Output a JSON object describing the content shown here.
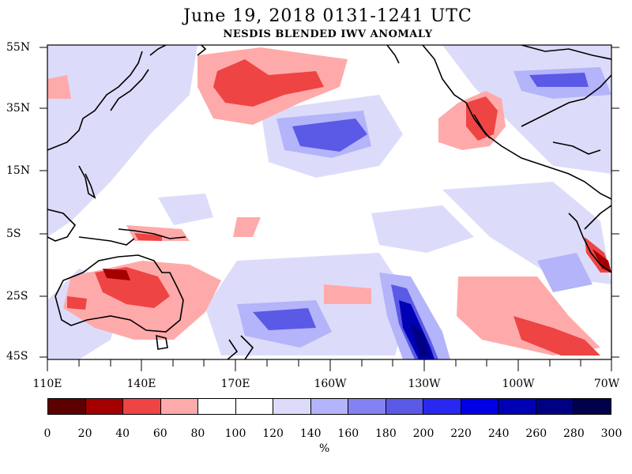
{
  "title": "June 19, 2018  0131-1241 UTC",
  "subtitle": "NESDIS BLENDED IWV ANOMALY",
  "map": {
    "lat_labels": [
      "55N",
      "35N",
      "15N",
      "5S",
      "25S",
      "45S"
    ],
    "lon_labels": [
      "110E",
      "140E",
      "170E",
      "160W",
      "130W",
      "100W",
      "70W"
    ]
  },
  "colorbar": {
    "ticks": [
      "0",
      "20",
      "40",
      "60",
      "80",
      "100",
      "120",
      "140",
      "160",
      "180",
      "200",
      "220",
      "240",
      "260",
      "280",
      "300"
    ],
    "colors": [
      "#5c0000",
      "#a50000",
      "#ee4444",
      "#ffaaaa",
      "#ffffff",
      "#ffffff",
      "#dcdcfa",
      "#b4b4fa",
      "#8282f0",
      "#5a5ae6",
      "#2828f0",
      "#0000e6",
      "#0000b4",
      "#000082",
      "#00004b"
    ],
    "units": "%"
  },
  "colors": {
    "red_dark": "#5c0000",
    "red": "#ee4444",
    "pink": "#ffaaaa",
    "lavender": "#dcdcfa",
    "blue_light": "#b4b4fa",
    "blue": "#5a5ae6",
    "navy": "#000082"
  }
}
